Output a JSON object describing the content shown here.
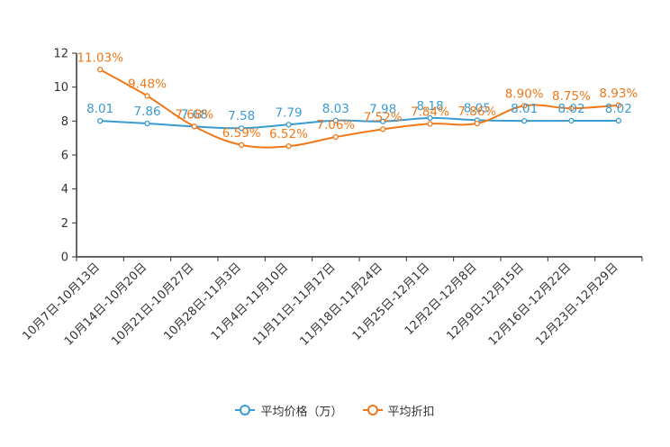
{
  "chart_data": {
    "type": "line",
    "title": "",
    "xlabel": "",
    "ylabel": "",
    "ylim": [
      0,
      12
    ],
    "yticks": [
      0,
      2,
      4,
      6,
      8,
      10,
      12
    ],
    "categories": [
      "10月7日-10月13日",
      "10月14日-10月20日",
      "10月21日-10月27日",
      "10月28日-11月3日",
      "11月4日-11月10日",
      "11月11日-11月17日",
      "11月18日-11月24日",
      "11月25日-12月1日",
      "12月2日-12月8日",
      "12月9日-12月15日",
      "12月16日-12月22日",
      "12月23日-12月29日"
    ],
    "series": [
      {
        "name": "平均价格（万）",
        "color": "#3a9bd0",
        "values": [
          8.01,
          7.86,
          7.68,
          7.58,
          7.79,
          8.03,
          7.98,
          8.18,
          8.05,
          8.01,
          8.02,
          8.02
        ],
        "labels": [
          "8.01",
          "7.86",
          "7.68",
          "7.58",
          "7.79",
          "8.03",
          "7.98",
          "8.18",
          "8.05",
          "8.01",
          "8.02",
          "8.02"
        ]
      },
      {
        "name": "平均折扣",
        "color": "#f07818",
        "values": [
          11.03,
          9.48,
          7.68,
          6.59,
          6.52,
          7.06,
          7.52,
          7.84,
          7.86,
          8.9,
          8.75,
          8.93
        ],
        "labels": [
          "11.03%",
          "9.48%",
          "7.68%",
          "6.59%",
          "6.52%",
          "7.06%",
          "7.52%",
          "7.84%",
          "7.86%",
          "8.90%",
          "8.75%",
          "8.93%"
        ]
      }
    ],
    "legend_position": "bottom"
  }
}
